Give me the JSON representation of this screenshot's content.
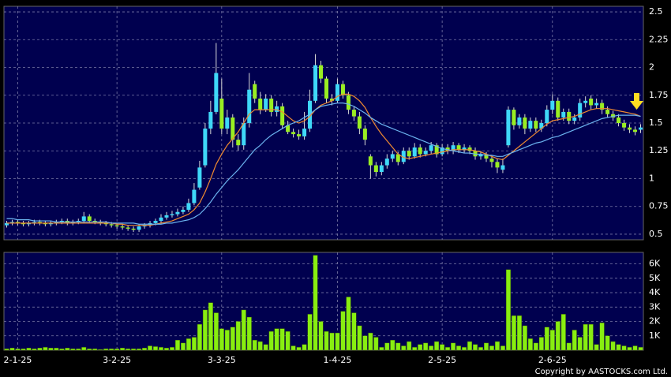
{
  "chart_data": [
    {
      "type": "candlestick",
      "categories": [
        null,
        null,
        "2-1-25",
        null,
        null,
        null,
        null,
        null,
        null,
        null,
        null,
        null,
        null,
        null,
        null,
        null,
        null,
        null,
        null,
        null,
        "3-2-25",
        null,
        null,
        null,
        null,
        null,
        null,
        null,
        null,
        null,
        null,
        null,
        null,
        null,
        null,
        null,
        null,
        null,
        null,
        "3-3-25",
        null,
        null,
        null,
        null,
        null,
        null,
        null,
        null,
        null,
        null,
        null,
        null,
        null,
        null,
        null,
        null,
        null,
        null,
        null,
        null,
        "1-4-25",
        null,
        null,
        null,
        null,
        null,
        null,
        null,
        null,
        null,
        null,
        null,
        null,
        null,
        null,
        null,
        null,
        null,
        null,
        "2-5-25",
        null,
        null,
        null,
        null,
        null,
        null,
        null,
        null,
        null,
        null,
        null,
        null,
        null,
        null,
        null,
        null,
        null,
        null,
        null,
        "2-6-25",
        null,
        null,
        null,
        null,
        null,
        null,
        null,
        null,
        null,
        null,
        null,
        null,
        null,
        null,
        null,
        null
      ],
      "open": [
        0.58,
        0.6,
        0.61,
        0.6,
        0.59,
        0.6,
        0.61,
        0.6,
        0.59,
        0.6,
        0.61,
        0.62,
        0.6,
        0.61,
        0.62,
        0.66,
        0.62,
        0.61,
        0.6,
        0.59,
        0.58,
        0.57,
        0.56,
        0.55,
        0.54,
        0.57,
        0.58,
        0.6,
        0.62,
        0.65,
        0.67,
        0.68,
        0.7,
        0.72,
        0.78,
        0.92,
        1.12,
        1.45,
        1.6,
        1.72,
        1.45,
        1.55,
        1.35,
        1.3,
        1.5,
        1.85,
        1.72,
        1.62,
        1.72,
        1.6,
        1.65,
        1.48,
        1.42,
        1.4,
        1.38,
        1.45,
        1.7,
        2.02,
        1.9,
        1.72,
        1.7,
        1.85,
        1.75,
        1.62,
        1.56,
        1.45,
        1.2,
        1.12,
        1.06,
        1.12,
        1.18,
        1.22,
        1.15,
        1.25,
        1.2,
        1.28,
        1.22,
        1.25,
        1.3,
        1.22,
        1.28,
        1.25,
        1.3,
        1.26,
        1.28,
        1.25,
        1.2,
        1.22,
        1.18,
        1.15,
        1.08,
        1.3,
        1.62,
        1.48,
        1.55,
        1.45,
        1.52,
        1.45,
        1.5,
        1.62,
        1.7,
        1.55,
        1.6,
        1.52,
        1.55,
        1.68,
        1.72,
        1.66,
        1.68,
        1.62,
        1.58,
        1.55,
        1.5,
        1.46,
        1.44,
        1.44
      ],
      "high": [
        0.62,
        0.63,
        0.63,
        0.62,
        0.62,
        0.63,
        0.63,
        0.62,
        0.62,
        0.63,
        0.64,
        0.64,
        0.63,
        0.64,
        0.7,
        0.68,
        0.64,
        0.63,
        0.62,
        0.61,
        0.6,
        0.59,
        0.58,
        0.57,
        0.59,
        0.6,
        0.62,
        0.64,
        0.68,
        0.7,
        0.71,
        0.73,
        0.75,
        0.82,
        0.96,
        1.16,
        1.5,
        1.7,
        2.22,
        1.9,
        1.62,
        1.58,
        1.4,
        1.55,
        1.95,
        1.88,
        1.78,
        1.76,
        1.75,
        1.7,
        1.68,
        1.52,
        1.45,
        1.44,
        1.6,
        1.8,
        2.12,
        2.06,
        1.92,
        1.76,
        1.9,
        1.88,
        1.78,
        1.65,
        1.6,
        1.48,
        1.22,
        1.15,
        1.15,
        1.22,
        1.25,
        1.24,
        1.28,
        1.28,
        1.32,
        1.31,
        1.28,
        1.33,
        1.32,
        1.31,
        1.31,
        1.33,
        1.32,
        1.31,
        1.3,
        1.28,
        1.25,
        1.24,
        1.21,
        1.18,
        1.18,
        1.65,
        1.64,
        1.58,
        1.58,
        1.55,
        1.55,
        1.53,
        1.66,
        1.76,
        1.73,
        1.63,
        1.63,
        1.58,
        1.72,
        1.74,
        1.75,
        1.72,
        1.71,
        1.65,
        1.61,
        1.58,
        1.53,
        1.49,
        1.47,
        1.49
      ],
      "low": [
        0.56,
        0.58,
        0.58,
        0.57,
        0.57,
        0.58,
        0.58,
        0.57,
        0.57,
        0.58,
        0.59,
        0.58,
        0.58,
        0.59,
        0.6,
        0.6,
        0.59,
        0.58,
        0.57,
        0.56,
        0.55,
        0.54,
        0.53,
        0.52,
        0.52,
        0.55,
        0.56,
        0.58,
        0.6,
        0.63,
        0.65,
        0.66,
        0.68,
        0.7,
        0.76,
        0.9,
        1.1,
        1.4,
        1.58,
        1.4,
        1.4,
        1.28,
        1.25,
        1.26,
        1.46,
        1.68,
        1.58,
        1.6,
        1.56,
        1.56,
        1.45,
        1.4,
        1.37,
        1.35,
        1.35,
        1.42,
        1.68,
        1.86,
        1.68,
        1.66,
        1.68,
        1.72,
        1.58,
        1.52,
        1.4,
        1.3,
        1.0,
        1.02,
        1.03,
        1.09,
        1.15,
        1.12,
        1.13,
        1.17,
        1.18,
        1.19,
        1.2,
        1.22,
        1.19,
        1.2,
        1.22,
        1.22,
        1.23,
        1.23,
        1.22,
        1.17,
        1.17,
        1.15,
        1.1,
        1.05,
        1.05,
        1.28,
        1.44,
        1.45,
        1.4,
        1.42,
        1.42,
        1.42,
        1.47,
        1.58,
        1.52,
        1.52,
        1.49,
        1.49,
        1.52,
        1.64,
        1.62,
        1.63,
        1.58,
        1.55,
        1.52,
        1.47,
        1.43,
        1.41,
        1.39,
        1.41
      ],
      "close": [
        0.6,
        0.61,
        0.6,
        0.59,
        0.6,
        0.61,
        0.6,
        0.59,
        0.6,
        0.61,
        0.62,
        0.6,
        0.61,
        0.62,
        0.66,
        0.62,
        0.61,
        0.6,
        0.59,
        0.58,
        0.57,
        0.56,
        0.55,
        0.54,
        0.57,
        0.58,
        0.6,
        0.62,
        0.65,
        0.67,
        0.68,
        0.7,
        0.72,
        0.78,
        0.9,
        1.1,
        1.45,
        1.6,
        1.95,
        1.45,
        1.55,
        1.35,
        1.3,
        1.5,
        1.8,
        1.72,
        1.62,
        1.72,
        1.6,
        1.65,
        1.48,
        1.42,
        1.4,
        1.38,
        1.45,
        1.7,
        2.02,
        1.9,
        1.72,
        1.7,
        1.85,
        1.75,
        1.62,
        1.56,
        1.45,
        1.35,
        1.12,
        1.06,
        1.12,
        1.18,
        1.22,
        1.15,
        1.25,
        1.2,
        1.28,
        1.22,
        1.25,
        1.3,
        1.22,
        1.28,
        1.25,
        1.3,
        1.26,
        1.28,
        1.25,
        1.2,
        1.22,
        1.18,
        1.15,
        1.1,
        1.12,
        1.62,
        1.48,
        1.55,
        1.45,
        1.52,
        1.45,
        1.5,
        1.62,
        1.7,
        1.55,
        1.6,
        1.52,
        1.55,
        1.68,
        1.7,
        1.66,
        1.68,
        1.62,
        1.58,
        1.55,
        1.5,
        1.46,
        1.44,
        1.42,
        1.46
      ],
      "up_color": "#3fd8f8",
      "down_color": "#99ee22",
      "wick_color": "#d8d8d8",
      "series": [
        {
          "color": "#f08a30",
          "values": [
            0.6,
            0.6,
            0.6,
            0.6,
            0.6,
            0.6,
            0.6,
            0.6,
            0.6,
            0.6,
            0.6,
            0.6,
            0.6,
            0.6,
            0.6,
            0.6,
            0.6,
            0.6,
            0.6,
            0.6,
            0.59,
            0.59,
            0.58,
            0.58,
            0.58,
            0.58,
            0.58,
            0.59,
            0.6,
            0.61,
            0.62,
            0.64,
            0.66,
            0.68,
            0.72,
            0.78,
            0.88,
            1.0,
            1.13,
            1.22,
            1.3,
            1.36,
            1.42,
            1.5,
            1.58,
            1.62,
            1.62,
            1.62,
            1.62,
            1.62,
            1.6,
            1.56,
            1.52,
            1.5,
            1.52,
            1.56,
            1.62,
            1.66,
            1.68,
            1.7,
            1.74,
            1.76,
            1.76,
            1.74,
            1.7,
            1.64,
            1.55,
            1.47,
            1.4,
            1.34,
            1.28,
            1.22,
            1.19,
            1.18,
            1.19,
            1.2,
            1.21,
            1.22,
            1.23,
            1.24,
            1.25,
            1.26,
            1.26,
            1.26,
            1.26,
            1.25,
            1.24,
            1.22,
            1.2,
            1.18,
            1.17,
            1.21,
            1.25,
            1.29,
            1.33,
            1.37,
            1.41,
            1.45,
            1.49,
            1.52,
            1.53,
            1.54,
            1.55,
            1.56,
            1.58,
            1.6,
            1.62,
            1.63,
            1.63,
            1.63,
            1.62,
            1.61,
            1.6,
            1.59,
            1.58,
            1.56
          ]
        },
        {
          "color": "#6cb4f0",
          "values": [
            0.64,
            0.64,
            0.63,
            0.63,
            0.63,
            0.62,
            0.62,
            0.62,
            0.62,
            0.61,
            0.61,
            0.61,
            0.61,
            0.61,
            0.61,
            0.61,
            0.61,
            0.61,
            0.61,
            0.6,
            0.6,
            0.6,
            0.6,
            0.6,
            0.59,
            0.59,
            0.59,
            0.59,
            0.59,
            0.6,
            0.6,
            0.61,
            0.62,
            0.63,
            0.65,
            0.68,
            0.73,
            0.79,
            0.86,
            0.92,
            0.98,
            1.03,
            1.08,
            1.14,
            1.2,
            1.26,
            1.3,
            1.35,
            1.39,
            1.42,
            1.45,
            1.48,
            1.5,
            1.52,
            1.55,
            1.58,
            1.62,
            1.65,
            1.66,
            1.67,
            1.68,
            1.68,
            1.67,
            1.65,
            1.62,
            1.59,
            1.55,
            1.52,
            1.49,
            1.47,
            1.45,
            1.43,
            1.41,
            1.39,
            1.37,
            1.35,
            1.33,
            1.31,
            1.29,
            1.27,
            1.26,
            1.25,
            1.24,
            1.23,
            1.23,
            1.22,
            1.22,
            1.21,
            1.21,
            1.2,
            1.2,
            1.22,
            1.24,
            1.26,
            1.28,
            1.3,
            1.32,
            1.33,
            1.35,
            1.37,
            1.38,
            1.4,
            1.42,
            1.44,
            1.46,
            1.48,
            1.5,
            1.52,
            1.54,
            1.55,
            1.56,
            1.57,
            1.57,
            1.57,
            1.57,
            1.56
          ]
        }
      ],
      "ylim": [
        0.45,
        2.55
      ],
      "yticks": [
        0.5,
        0.75,
        1,
        1.25,
        1.5,
        1.75,
        2,
        2.25,
        2.5
      ],
      "grid": true
    },
    {
      "type": "bar",
      "color": "#88ee11",
      "values": [
        100,
        150,
        100,
        100,
        150,
        100,
        150,
        200,
        150,
        150,
        100,
        150,
        100,
        100,
        200,
        100,
        100,
        50,
        100,
        100,
        100,
        150,
        100,
        100,
        100,
        150,
        300,
        250,
        200,
        150,
        200,
        700,
        500,
        800,
        900,
        1800,
        2800,
        3300,
        2600,
        1500,
        1400,
        1600,
        2000,
        2800,
        2300,
        700,
        600,
        400,
        1300,
        1500,
        1500,
        1300,
        300,
        200,
        400,
        2500,
        6600,
        2000,
        1300,
        1200,
        1200,
        2700,
        3700,
        2600,
        1700,
        1000,
        1200,
        900,
        200,
        500,
        700,
        500,
        300,
        600,
        200,
        400,
        500,
        300,
        600,
        400,
        200,
        500,
        300,
        200,
        600,
        400,
        200,
        500,
        300,
        600,
        300,
        5600,
        2400,
        2400,
        1700,
        800,
        500,
        900,
        1600,
        1400,
        2000,
        2500,
        500,
        1400,
        900,
        1800,
        1800,
        400,
        1900,
        1000,
        600,
        400,
        300,
        200,
        300,
        200
      ],
      "ylim": [
        0,
        6800
      ],
      "yticks": [
        {
          "value": 1000,
          "label": "1K"
        },
        {
          "value": 2000,
          "label": "2K"
        },
        {
          "value": 3000,
          "label": "3K"
        },
        {
          "value": 4000,
          "label": "4K"
        },
        {
          "value": 5000,
          "label": "5K"
        },
        {
          "value": 6000,
          "label": "6K"
        }
      ],
      "grid": true,
      "copyright": "Copyright by AASTOCKS.com Ltd."
    }
  ]
}
